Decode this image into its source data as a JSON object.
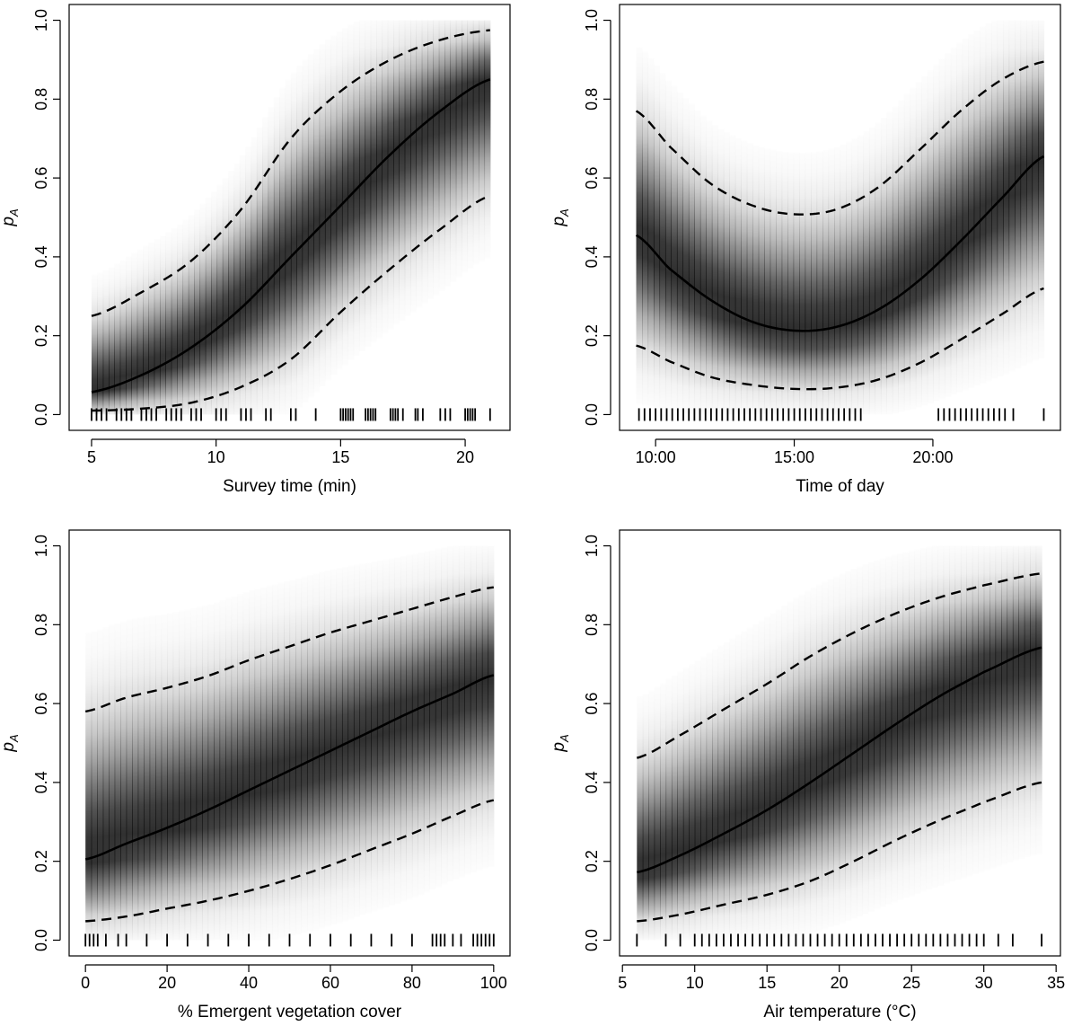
{
  "figure": {
    "background": "#ffffff",
    "band_color": "#000000",
    "line_color": "#000000"
  },
  "chart_data": [
    {
      "type": "line",
      "xlabel": "Survey time (min)",
      "ylabel": "pA",
      "ylabel_parts": [
        "p",
        "A"
      ],
      "xlim": [
        4.1,
        21.8
      ],
      "ylim": [
        -0.04,
        1.04
      ],
      "xticks": [
        5,
        10,
        15,
        20
      ],
      "xtick_labels": [
        "5",
        "10",
        "15",
        "20"
      ],
      "yticks": [
        0,
        0.2,
        0.4,
        0.6,
        0.8,
        1
      ],
      "ytick_labels": [
        "0.0",
        "0.2",
        "0.4",
        "0.6",
        "0.8",
        "1.0"
      ],
      "x_range": [
        5,
        21
      ],
      "series": [
        {
          "role": "mean",
          "style": "solid",
          "x": [
            5,
            7,
            9,
            11,
            13,
            15,
            17,
            19,
            21
          ],
          "y": [
            0.057,
            0.1,
            0.17,
            0.27,
            0.4,
            0.53,
            0.66,
            0.77,
            0.85
          ]
        },
        {
          "role": "upper",
          "style": "dashed",
          "x": [
            5,
            7,
            9,
            11,
            13,
            15,
            17,
            19,
            21
          ],
          "y": [
            0.25,
            0.31,
            0.39,
            0.52,
            0.7,
            0.82,
            0.9,
            0.95,
            0.975
          ]
        },
        {
          "role": "lower",
          "style": "dashed",
          "x": [
            5,
            7,
            9,
            11,
            13,
            15,
            17,
            19,
            21
          ],
          "y": [
            0.01,
            0.015,
            0.03,
            0.07,
            0.14,
            0.26,
            0.37,
            0.47,
            0.555
          ]
        }
      ],
      "rug": [
        5,
        5.2,
        5.4,
        5.6,
        6,
        6.2,
        6.4,
        6.6,
        7,
        7.2,
        7.4,
        7.6,
        8,
        8.2,
        8.4,
        8.6,
        9,
        9.2,
        9.4,
        10,
        10.2,
        10.4,
        11,
        11.2,
        11.4,
        12,
        12.2,
        13,
        13.2,
        14,
        15,
        15.1,
        15.2,
        15.3,
        15.4,
        15.5,
        16,
        16.1,
        16.2,
        16.3,
        16.4,
        17,
        17.1,
        17.2,
        17.3,
        17.5,
        18,
        18.1,
        18.3,
        19,
        19.2,
        19.4,
        20,
        20.1,
        20.2,
        20.3,
        20.4,
        21
      ]
    },
    {
      "type": "line",
      "xlabel": "Time of day",
      "ylabel": "pA",
      "ylabel_parts": [
        "p",
        "A"
      ],
      "xlim": [
        8.7,
        24.6
      ],
      "ylim": [
        -0.04,
        1.04
      ],
      "xticks": [
        10,
        15,
        20
      ],
      "xtick_labels": [
        "10:00",
        "15:00",
        "20:00"
      ],
      "yticks": [
        0,
        0.2,
        0.4,
        0.6,
        0.8,
        1
      ],
      "ytick_labels": [
        "0.0",
        "0.2",
        "0.4",
        "0.6",
        "0.8",
        "1.0"
      ],
      "x_range": [
        9.3,
        24
      ],
      "series": [
        {
          "role": "mean",
          "style": "solid",
          "x": [
            9.3,
            10.5,
            12,
            13.5,
            15,
            16.5,
            18,
            19.5,
            21,
            22.5,
            24
          ],
          "y": [
            0.455,
            0.37,
            0.29,
            0.235,
            0.213,
            0.222,
            0.265,
            0.34,
            0.44,
            0.55,
            0.655
          ]
        },
        {
          "role": "upper",
          "style": "dashed",
          "x": [
            9.3,
            10.5,
            12,
            13.5,
            15,
            16.5,
            18,
            19.5,
            21,
            22.5,
            24
          ],
          "y": [
            0.77,
            0.68,
            0.585,
            0.53,
            0.508,
            0.52,
            0.575,
            0.67,
            0.77,
            0.85,
            0.895
          ]
        },
        {
          "role": "lower",
          "style": "dashed",
          "x": [
            9.3,
            10.5,
            12,
            13.5,
            15,
            16.5,
            18,
            19.5,
            21,
            22.5,
            24
          ],
          "y": [
            0.175,
            0.135,
            0.095,
            0.075,
            0.065,
            0.068,
            0.088,
            0.13,
            0.19,
            0.255,
            0.32
          ]
        }
      ],
      "rug": [
        9.4,
        9.6,
        9.8,
        10,
        10.2,
        10.4,
        10.6,
        10.8,
        11,
        11.2,
        11.4,
        11.6,
        11.8,
        12,
        12.2,
        12.4,
        12.6,
        12.8,
        13,
        13.2,
        13.4,
        13.6,
        13.8,
        14,
        14.2,
        14.4,
        14.6,
        14.8,
        15,
        15.2,
        15.4,
        15.6,
        15.8,
        16,
        16.2,
        16.4,
        16.6,
        16.8,
        17,
        17.2,
        17.4,
        20.2,
        20.4,
        20.6,
        20.8,
        21,
        21.2,
        21.4,
        21.6,
        21.8,
        22,
        22.2,
        22.4,
        22.6,
        22.9,
        24
      ]
    },
    {
      "type": "line",
      "xlabel": "% Emergent vegetation cover",
      "ylabel": "pA",
      "ylabel_parts": [
        "p",
        "A"
      ],
      "xlim": [
        -4,
        104
      ],
      "ylim": [
        -0.04,
        1.04
      ],
      "xticks": [
        0,
        20,
        40,
        60,
        80,
        100
      ],
      "xtick_labels": [
        "0",
        "20",
        "40",
        "60",
        "80",
        "100"
      ],
      "yticks": [
        0,
        0.2,
        0.4,
        0.6,
        0.8,
        1
      ],
      "ytick_labels": [
        "0.0",
        "0.2",
        "0.4",
        "0.6",
        "0.8",
        "1.0"
      ],
      "x_range": [
        0,
        100
      ],
      "series": [
        {
          "role": "mean",
          "style": "solid",
          "x": [
            0,
            10,
            20,
            30,
            40,
            50,
            60,
            70,
            80,
            90,
            100
          ],
          "y": [
            0.205,
            0.245,
            0.285,
            0.33,
            0.38,
            0.43,
            0.48,
            0.53,
            0.58,
            0.625,
            0.672
          ]
        },
        {
          "role": "upper",
          "style": "dashed",
          "x": [
            0,
            10,
            20,
            30,
            40,
            50,
            60,
            70,
            80,
            90,
            100
          ],
          "y": [
            0.58,
            0.615,
            0.64,
            0.67,
            0.71,
            0.745,
            0.78,
            0.81,
            0.84,
            0.87,
            0.895
          ]
        },
        {
          "role": "lower",
          "style": "dashed",
          "x": [
            0,
            10,
            20,
            30,
            40,
            50,
            60,
            70,
            80,
            90,
            100
          ],
          "y": [
            0.048,
            0.06,
            0.08,
            0.1,
            0.125,
            0.155,
            0.19,
            0.23,
            0.27,
            0.315,
            0.355
          ]
        }
      ],
      "rug": [
        0,
        1,
        2,
        3,
        5,
        8,
        10,
        15,
        20,
        25,
        30,
        35,
        40,
        45,
        50,
        55,
        60,
        65,
        70,
        75,
        80,
        85,
        86,
        87,
        88,
        90,
        92,
        95,
        96,
        97,
        98,
        99,
        100
      ]
    },
    {
      "type": "line",
      "xlabel": "Air temperature (°C)",
      "ylabel": "pA",
      "ylabel_parts": [
        "p",
        "A"
      ],
      "xlim": [
        4.8,
        35.3
      ],
      "ylim": [
        -0.04,
        1.04
      ],
      "xticks": [
        5,
        10,
        15,
        20,
        25,
        30,
        35
      ],
      "xtick_labels": [
        "5",
        "10",
        "15",
        "20",
        "25",
        "30",
        "35"
      ],
      "yticks": [
        0,
        0.2,
        0.4,
        0.6,
        0.8,
        1
      ],
      "ytick_labels": [
        "0.0",
        "0.2",
        "0.4",
        "0.6",
        "0.8",
        "1.0"
      ],
      "x_range": [
        6,
        34
      ],
      "series": [
        {
          "role": "mean",
          "style": "solid",
          "x": [
            6,
            9,
            12,
            15,
            18,
            21,
            24,
            27,
            30,
            34
          ],
          "y": [
            0.172,
            0.215,
            0.27,
            0.33,
            0.4,
            0.475,
            0.55,
            0.62,
            0.68,
            0.742
          ]
        },
        {
          "role": "upper",
          "style": "dashed",
          "x": [
            6,
            9,
            12,
            15,
            18,
            21,
            24,
            27,
            30,
            34
          ],
          "y": [
            0.462,
            0.52,
            0.585,
            0.65,
            0.72,
            0.78,
            0.83,
            0.87,
            0.9,
            0.93
          ]
        },
        {
          "role": "lower",
          "style": "dashed",
          "x": [
            6,
            9,
            12,
            15,
            18,
            21,
            24,
            27,
            30,
            34
          ],
          "y": [
            0.048,
            0.065,
            0.09,
            0.115,
            0.15,
            0.2,
            0.255,
            0.305,
            0.35,
            0.4
          ]
        }
      ],
      "rug": [
        6,
        8,
        9,
        10,
        10.5,
        11,
        11.5,
        12,
        12.5,
        13,
        13.5,
        14,
        14.5,
        15,
        15.5,
        16,
        16.5,
        17,
        17.5,
        18,
        18.5,
        19,
        19.5,
        20,
        20.5,
        21,
        21.5,
        22,
        22.5,
        23,
        23.5,
        24,
        24.5,
        25,
        25.5,
        26,
        26.5,
        27,
        27.5,
        28,
        28.5,
        29,
        29.5,
        30,
        31,
        32,
        34
      ]
    }
  ]
}
